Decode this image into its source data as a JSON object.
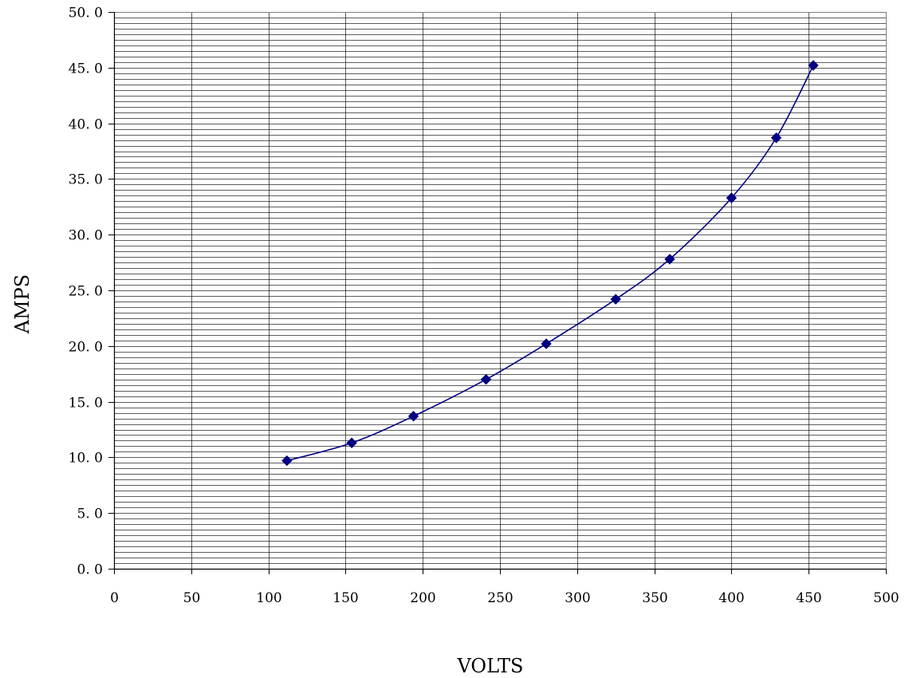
{
  "chart_data": {
    "type": "line",
    "title": "",
    "xlabel": "VOLTS",
    "ylabel": "AMPS",
    "xlim": [
      0,
      500
    ],
    "ylim": [
      0,
      50
    ],
    "x_ticks": [
      0,
      50,
      100,
      150,
      200,
      250,
      300,
      350,
      400,
      450,
      500
    ],
    "x_tick_labels": [
      "0",
      "50",
      "100",
      "150",
      "200",
      "250",
      "300",
      "350",
      "400",
      "450",
      "500"
    ],
    "y_ticks": [
      0,
      5,
      10,
      15,
      20,
      25,
      30,
      35,
      40,
      45,
      50
    ],
    "y_tick_labels": [
      "0. 0",
      "5. 0",
      "10. 0",
      "15. 0",
      "20. 0",
      "25. 0",
      "30. 0",
      "35. 0",
      "40. 0",
      "45. 0",
      "50. 0"
    ],
    "grid": {
      "vertical_major": true,
      "horizontal_minor_step": 0.5
    },
    "line_color": "#000080",
    "marker": "diamond",
    "series": [
      {
        "x": [
          112,
          154,
          194,
          241,
          280,
          325,
          360,
          400,
          429,
          453
        ],
        "y": [
          9.7,
          11.3,
          13.7,
          17.0,
          20.2,
          24.2,
          27.8,
          33.3,
          38.7,
          45.2
        ]
      }
    ]
  }
}
